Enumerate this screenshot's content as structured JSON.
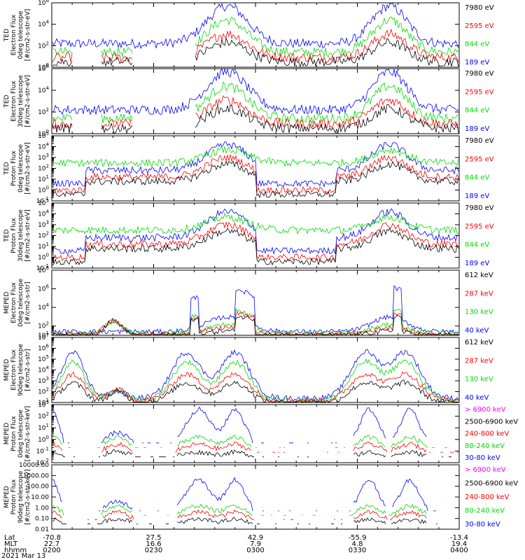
{
  "colors": {
    "blue": "#0000ff",
    "red": "#ff0000",
    "green": "#00dd00",
    "black": "#000000",
    "magenta": "#ff00ff"
  },
  "chart_data": [
    {
      "type": "line",
      "name": "ted-electron-0deg",
      "ylabel": [
        "TED",
        "Electron Flux",
        "0deg telescope",
        "[#/cm2-s-str-eV]"
      ],
      "yscale": "log",
      "ylim": [
        1,
        1000000
      ],
      "yticks": [
        {
          "v": 1,
          "e": "0"
        },
        {
          "v": 100,
          "e": "2"
        },
        {
          "v": 10000,
          "e": "4"
        },
        {
          "v": 1000000,
          "e": "6"
        }
      ],
      "legend": [
        {
          "label": "7980 eV",
          "color": "black"
        },
        {
          "label": "2595 eV",
          "color": "red"
        },
        {
          "label": "844 eV",
          "color": "green"
        },
        {
          "label": "189 eV",
          "color": "blue"
        }
      ]
    },
    {
      "type": "line",
      "name": "ted-electron-30deg",
      "ylabel": [
        "TED",
        "Electron Flux",
        "30deg telescope",
        "[#/cm2-s-str-eV]"
      ],
      "yscale": "log",
      "ylim": [
        1,
        1000000
      ],
      "yticks": [
        {
          "v": 1,
          "e": "0"
        },
        {
          "v": 100,
          "e": "2"
        },
        {
          "v": 10000,
          "e": "4"
        },
        {
          "v": 1000000,
          "e": "6"
        }
      ],
      "legend": [
        {
          "label": "7980 eV",
          "color": "black"
        },
        {
          "label": "2595 eV",
          "color": "red"
        },
        {
          "label": "844 eV",
          "color": "green"
        },
        {
          "label": "189 eV",
          "color": "blue"
        }
      ]
    },
    {
      "type": "line",
      "name": "ted-proton-0deg",
      "ylabel": [
        "TED",
        "Proton Flux",
        "0deg telescope",
        "[#/cm2-s-str-eV]"
      ],
      "yscale": "log",
      "ylim": [
        0.1,
        100000
      ],
      "yticks": [
        {
          "v": 0.1,
          "e": "-1"
        },
        {
          "v": 1,
          "e": "0"
        },
        {
          "v": 10,
          "e": "1"
        },
        {
          "v": 100,
          "e": "2"
        },
        {
          "v": 1000,
          "e": "3"
        },
        {
          "v": 10000,
          "e": "4"
        },
        {
          "v": 100000,
          "e": "5"
        }
      ],
      "legend": [
        {
          "label": "7980 eV",
          "color": "black"
        },
        {
          "label": "2595 eV",
          "color": "red"
        },
        {
          "label": "844 eV",
          "color": "green"
        },
        {
          "label": "189 eV",
          "color": "blue"
        }
      ]
    },
    {
      "type": "line",
      "name": "ted-proton-30deg",
      "ylabel": [
        "TED",
        "Proton Flux",
        "30deg telescope",
        "[#/cm2-s-str-eV]"
      ],
      "yscale": "log",
      "ylim": [
        0.1,
        100000
      ],
      "yticks": [
        {
          "v": 0.1,
          "e": "-1"
        },
        {
          "v": 1,
          "e": "0"
        },
        {
          "v": 10,
          "e": "1"
        },
        {
          "v": 100,
          "e": "2"
        },
        {
          "v": 1000,
          "e": "3"
        },
        {
          "v": 10000,
          "e": "4"
        },
        {
          "v": 100000,
          "e": "5"
        }
      ],
      "legend": [
        {
          "label": "7980 eV",
          "color": "black"
        },
        {
          "label": "2595 eV",
          "color": "red"
        },
        {
          "label": "844 eV",
          "color": "green"
        },
        {
          "label": "189 eV",
          "color": "blue"
        }
      ]
    },
    {
      "type": "line",
      "name": "meped-electron-0deg",
      "ylabel": [
        "MEPED",
        "Electron Flux",
        "0deg telescope",
        "[#/cm2-s-str]"
      ],
      "yscale": "log",
      "ylim": [
        10,
        100000000
      ],
      "yticks": [
        {
          "v": 10,
          "e": "1"
        },
        {
          "v": 100,
          "e": "2"
        },
        {
          "v": 10000,
          "e": "4"
        },
        {
          "v": 1000000,
          "e": "6"
        },
        {
          "v": 100000000,
          "e": "8"
        }
      ],
      "legend": [
        {
          "label": "612 keV",
          "color": "black"
        },
        {
          "label": "287 keV",
          "color": "red"
        },
        {
          "label": "130 keV",
          "color": "green"
        },
        {
          "label": "40 keV",
          "color": "blue"
        }
      ]
    },
    {
      "type": "line",
      "name": "meped-electron-90deg",
      "ylabel": [
        "MEPED",
        "Electron Flux",
        "90deg telescope",
        "[#/cm2-s-str]"
      ],
      "yscale": "log",
      "ylim": [
        10,
        10000000
      ],
      "yticks": [
        {
          "v": 10,
          "e": "1"
        },
        {
          "v": 100,
          "e": "2"
        },
        {
          "v": 1000,
          "e": "3"
        },
        {
          "v": 10000,
          "e": "4"
        },
        {
          "v": 100000,
          "e": "5"
        },
        {
          "v": 1000000,
          "e": "6"
        },
        {
          "v": 10000000,
          "e": "7"
        }
      ],
      "legend": [
        {
          "label": "612 keV",
          "color": "black"
        },
        {
          "label": "287 keV",
          "color": "red"
        },
        {
          "label": "130 keV",
          "color": "green"
        },
        {
          "label": "40 keV",
          "color": "blue"
        }
      ]
    },
    {
      "type": "line",
      "name": "meped-proton-0deg",
      "ylabel": [
        "MEPED",
        "Proton Flux",
        "0deg telescope",
        "[#/cm2-s-str-keV]"
      ],
      "yscale": "log",
      "ylim": [
        0.01,
        1000
      ],
      "yticks": [
        {
          "v": 0.01,
          "e": "-2"
        },
        {
          "v": 0.1,
          "e": "-1"
        },
        {
          "v": 1,
          "e": "0"
        },
        {
          "v": 10,
          "e": "1"
        },
        {
          "v": 100,
          "e": "2"
        },
        {
          "v": 1000,
          "e": "3"
        }
      ],
      "legend": [
        {
          "label": "> 6900 keV",
          "color": "magenta"
        },
        {
          "label": "2500-6900 keV",
          "color": "black"
        },
        {
          "label": "240-800 keV",
          "color": "red"
        },
        {
          "label": "80-240 keV",
          "color": "green"
        },
        {
          "label": "30-80 keV",
          "color": "blue"
        }
      ]
    },
    {
      "type": "line",
      "name": "meped-proton-90deg",
      "ylabel": [
        "MEPED",
        "Proton Flux",
        "90deg telescope",
        "[#/cm2-s-str-keV]"
      ],
      "yscale": "log",
      "ylim": [
        0.01,
        10000
      ],
      "ytick_labels": [
        "10000.00",
        "1000.00",
        "100.00",
        "10.00",
        "1.00",
        "0.10",
        "0.01"
      ],
      "yticks_plain": [
        10000,
        1000,
        100,
        10,
        1,
        0.1,
        0.01
      ],
      "legend": [
        {
          "label": "> 6900 keV",
          "color": "magenta"
        },
        {
          "label": "2500-6900 keV",
          "color": "black"
        },
        {
          "label": "240-800 keV",
          "color": "red"
        },
        {
          "label": "80-240 keV",
          "color": "green"
        },
        {
          "label": "30-80 keV",
          "color": "blue"
        }
      ]
    }
  ],
  "xaxis": {
    "row_labels": [
      "Lat",
      "MLT",
      "hhmm"
    ],
    "ticks": [
      {
        "lat": "-70.8",
        "mlt": "22.7",
        "hhmm": "0200"
      },
      {
        "lat": "27.5",
        "mlt": "16.6",
        "hhmm": "0230"
      },
      {
        "lat": "42.9",
        "mlt": "7.9",
        "hhmm": "0300"
      },
      {
        "lat": "-55.9",
        "mlt": "4.8",
        "hhmm": "0330"
      },
      {
        "lat": "-13.4",
        "mlt": "19.4",
        "hhmm": "0400"
      }
    ]
  },
  "date": "2021 Mar 13"
}
